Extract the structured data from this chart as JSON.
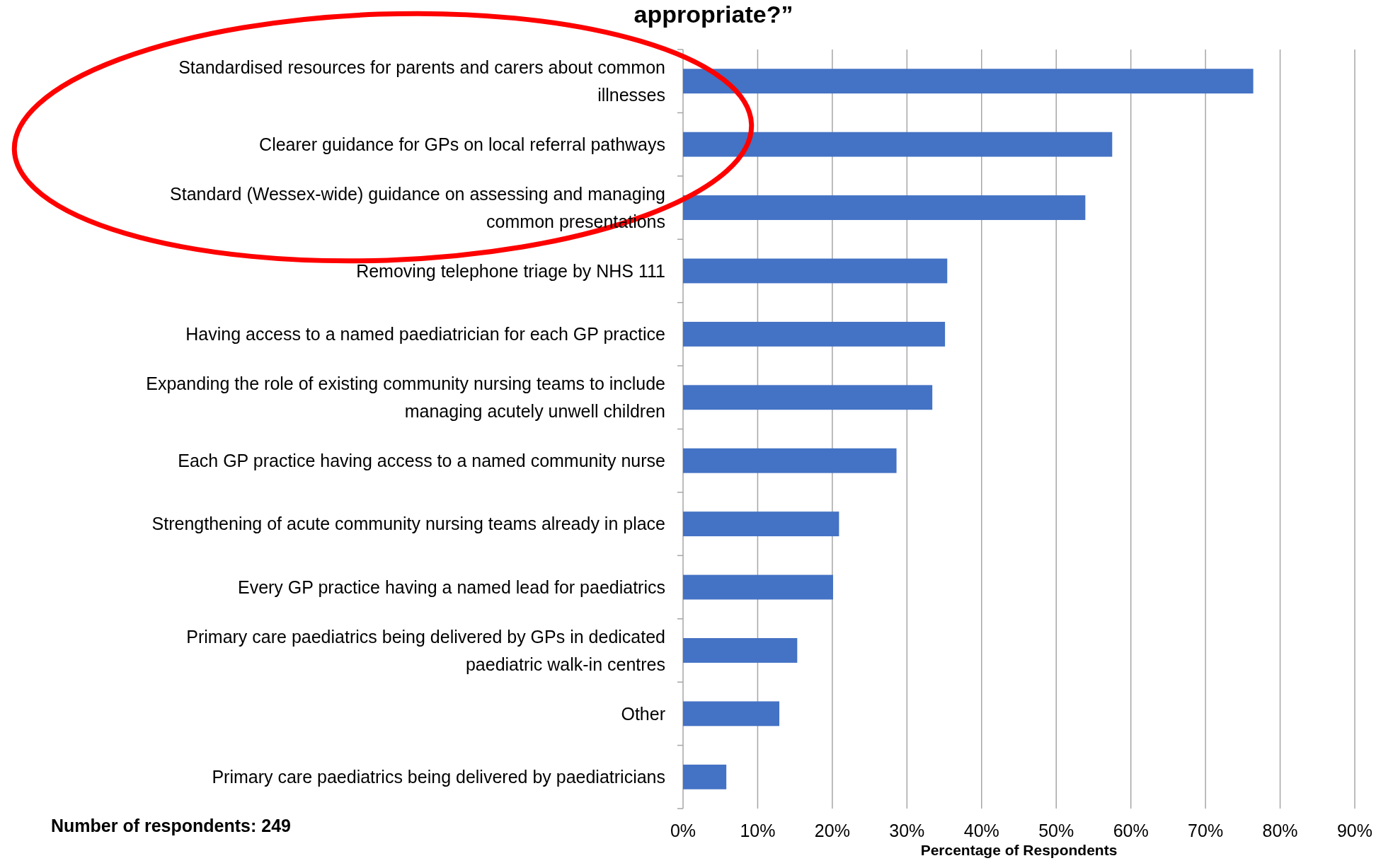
{
  "chart_data": {
    "type": "bar",
    "orientation": "horizontal",
    "title": "appropriate?”",
    "xlabel": "Percentage of Respondents",
    "categories": [
      "Standardised resources for parents and carers about common illnesses",
      "Clearer guidance for GPs on local referral pathways",
      "Standard (Wessex-wide) guidance on assessing and managing common presentations",
      "Removing telephone triage by NHS 111",
      "Having access to a named paediatrician for each GP practice",
      "Expanding the role of existing community nursing teams to include managing acutely unwell children",
      "Each GP practice having access to a named community nurse",
      "Strengthening of acute community nursing teams already in place",
      "Every GP practice having a named lead for paediatrics",
      "Primary care paediatrics being delivered by GPs in dedicated paediatric walk-in centres",
      "Other",
      "Primary care paediatrics being delivered by paediatricians"
    ],
    "values": [
      76.4,
      57.5,
      53.9,
      35.4,
      35.1,
      33.4,
      28.6,
      20.9,
      20.1,
      15.3,
      12.9,
      5.8
    ],
    "color": "#4472c4",
    "xlim": [
      0,
      90
    ],
    "xticks": [
      {
        "value": 0,
        "label": "0%"
      },
      {
        "value": 10,
        "label": "10%"
      },
      {
        "value": 20,
        "label": "20%"
      },
      {
        "value": 30,
        "label": "30%"
      },
      {
        "value": 40,
        "label": "40%"
      },
      {
        "value": 50,
        "label": "50%"
      },
      {
        "value": 60,
        "label": "60%"
      },
      {
        "value": 70,
        "label": "70%"
      },
      {
        "value": 80,
        "label": "80%"
      },
      {
        "value": 90,
        "label": "90%"
      }
    ],
    "grid": "x",
    "annotations": [
      "Number of respondents: 249"
    ]
  }
}
